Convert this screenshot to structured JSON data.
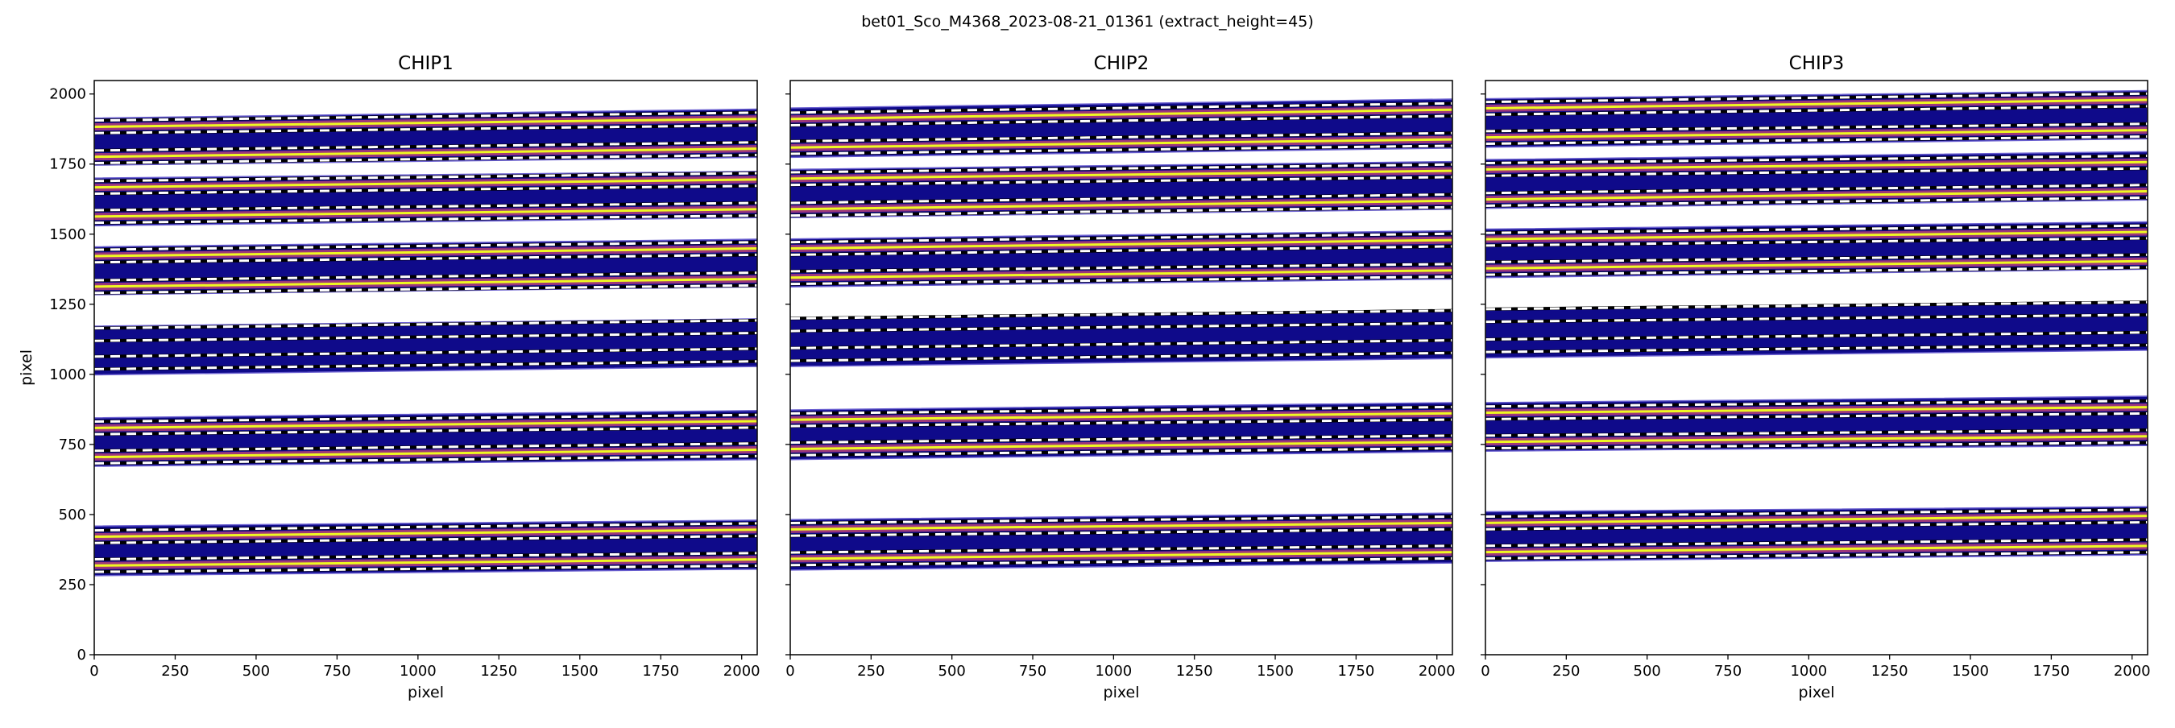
{
  "figure_title": "bet01_Sco_M4368_2023-08-21_01361  (extract_height=45)",
  "colors": {
    "order_fill": "#0f0a8a",
    "trace_core": "#f0f921",
    "trace_glow": "#cc4778",
    "aperture_dash": "#ffffff",
    "aperture_bg": "#000000"
  },
  "chart_data": [
    {
      "type": "heatmap",
      "title": "CHIP1",
      "xlabel": "pixel",
      "ylabel": "pixel",
      "xlim": [
        0,
        2048
      ],
      "ylim": [
        0,
        2048
      ],
      "xticks": [
        0,
        250,
        500,
        750,
        1000,
        1250,
        1500,
        1750,
        2000
      ],
      "yticks": [
        0,
        250,
        500,
        750,
        1000,
        1250,
        1500,
        1750,
        2000
      ],
      "show_ytick_labels": true,
      "extract_height": 45,
      "orders": [
        {
          "top": [
            1914,
            1946
          ],
          "bottom": [
            1746,
            1774
          ],
          "traces": [
            [
              1883,
              1911
            ],
            [
              1776,
              1805
            ]
          ],
          "bright": true
        },
        {
          "top": [
            1700,
            1724
          ],
          "bottom": [
            1530,
            1559
          ],
          "traces": [
            [
              1667,
              1695
            ],
            [
              1563,
              1589
            ]
          ],
          "bright": true
        },
        {
          "top": [
            1455,
            1482
          ],
          "bottom": [
            1284,
            1312
          ],
          "traces": [
            [
              1422,
              1449
            ],
            [
              1313,
              1340
            ]
          ],
          "bright": true
        },
        {
          "top": [
            1172,
            1198
          ],
          "bottom": [
            998,
            1028
          ],
          "traces": [
            [
              1142,
              1170
            ],
            [
              1041,
              1069
            ]
          ],
          "bright": false
        },
        {
          "top": [
            845,
            871
          ],
          "bottom": [
            672,
            696
          ],
          "traces": [
            [
              809,
              833
            ],
            [
              705,
              731
            ]
          ],
          "bright": true
        },
        {
          "top": [
            459,
            480
          ],
          "bottom": [
            282,
            305
          ],
          "traces": [
            [
              421,
              446
            ],
            [
              318,
              340
            ]
          ],
          "bright": true
        }
      ]
    },
    {
      "type": "heatmap",
      "title": "CHIP2",
      "xlabel": "pixel",
      "ylabel": "",
      "xlim": [
        0,
        2048
      ],
      "ylim": [
        0,
        2048
      ],
      "xticks": [
        0,
        250,
        500,
        750,
        1000,
        1250,
        1500,
        1750,
        2000
      ],
      "yticks": [
        0,
        250,
        500,
        750,
        1000,
        1250,
        1500,
        1750,
        2000
      ],
      "show_ytick_labels": false,
      "extract_height": 45,
      "orders": [
        {
          "top": [
            1950,
            1982
          ],
          "bottom": [
            1774,
            1807
          ],
          "traces": [
            [
              1911,
              1944
            ],
            [
              1809,
              1838
            ]
          ],
          "bright": true
        },
        {
          "top": [
            1731,
            1759
          ],
          "bottom": [
            1559,
            1589
          ],
          "traces": [
            [
              1698,
              1726
            ],
            [
              1589,
              1619
            ]
          ],
          "bright": true
        },
        {
          "top": [
            1483,
            1512
          ],
          "bottom": [
            1312,
            1340
          ],
          "traces": [
            [
              1449,
              1479
            ],
            [
              1345,
              1371
            ]
          ],
          "bright": true
        },
        {
          "top": [
            1201,
            1229
          ],
          "bottom": [
            1028,
            1056
          ],
          "traces": [
            [
              1177,
              1205
            ],
            [
              1071,
              1099
            ]
          ],
          "bright": false
        },
        {
          "top": [
            873,
            899
          ],
          "bottom": [
            696,
            724
          ],
          "traces": [
            [
              838,
              861
            ],
            [
              734,
              759
            ]
          ],
          "bright": true
        },
        {
          "top": [
            482,
            505
          ],
          "bottom": [
            302,
            327
          ],
          "traces": [
            [
              447,
              470
            ],
            [
              342,
              366
            ]
          ],
          "bright": true
        }
      ]
    },
    {
      "type": "heatmap",
      "title": "CHIP3",
      "xlabel": "pixel",
      "ylabel": "",
      "xlim": [
        0,
        2048
      ],
      "ylim": [
        0,
        2048
      ],
      "xticks": [
        0,
        250,
        500,
        750,
        1000,
        1250,
        1500,
        1750,
        2000
      ],
      "yticks": [
        0,
        250,
        500,
        750,
        1000,
        1250,
        1500,
        1750,
        2000
      ],
      "show_ytick_labels": false,
      "extract_height": 45,
      "orders": [
        {
          "top": [
            1983,
            2012
          ],
          "bottom": [
            1810,
            1840
          ],
          "traces": [
            [
              1949,
              1979
            ],
            [
              1845,
              1871
            ]
          ],
          "bright": true
        },
        {
          "top": [
            1766,
            1794
          ],
          "bottom": [
            1592,
            1622
          ],
          "traces": [
            [
              1731,
              1757
            ],
            [
              1624,
              1653
            ]
          ],
          "bright": true
        },
        {
          "top": [
            1518,
            1544
          ],
          "bottom": [
            1345,
            1375
          ],
          "traces": [
            [
              1482,
              1508
            ],
            [
              1378,
              1404
            ]
          ],
          "bright": true
        },
        {
          "top": [
            1233,
            1256
          ],
          "bottom": [
            1059,
            1086
          ],
          "traces": [
            [
              1210,
              1235
            ],
            [
              1102,
              1127
            ]
          ],
          "bright": false
        },
        {
          "top": [
            899,
            922
          ],
          "bottom": [
            726,
            746
          ],
          "traces": [
            [
              863,
              883
            ],
            [
              759,
              779
            ]
          ],
          "bright": true
        },
        {
          "top": [
            510,
            528
          ],
          "bottom": [
            333,
            356
          ],
          "traces": [
            [
              470,
              495
            ],
            [
              366,
              388
            ]
          ],
          "bright": true
        }
      ]
    }
  ]
}
